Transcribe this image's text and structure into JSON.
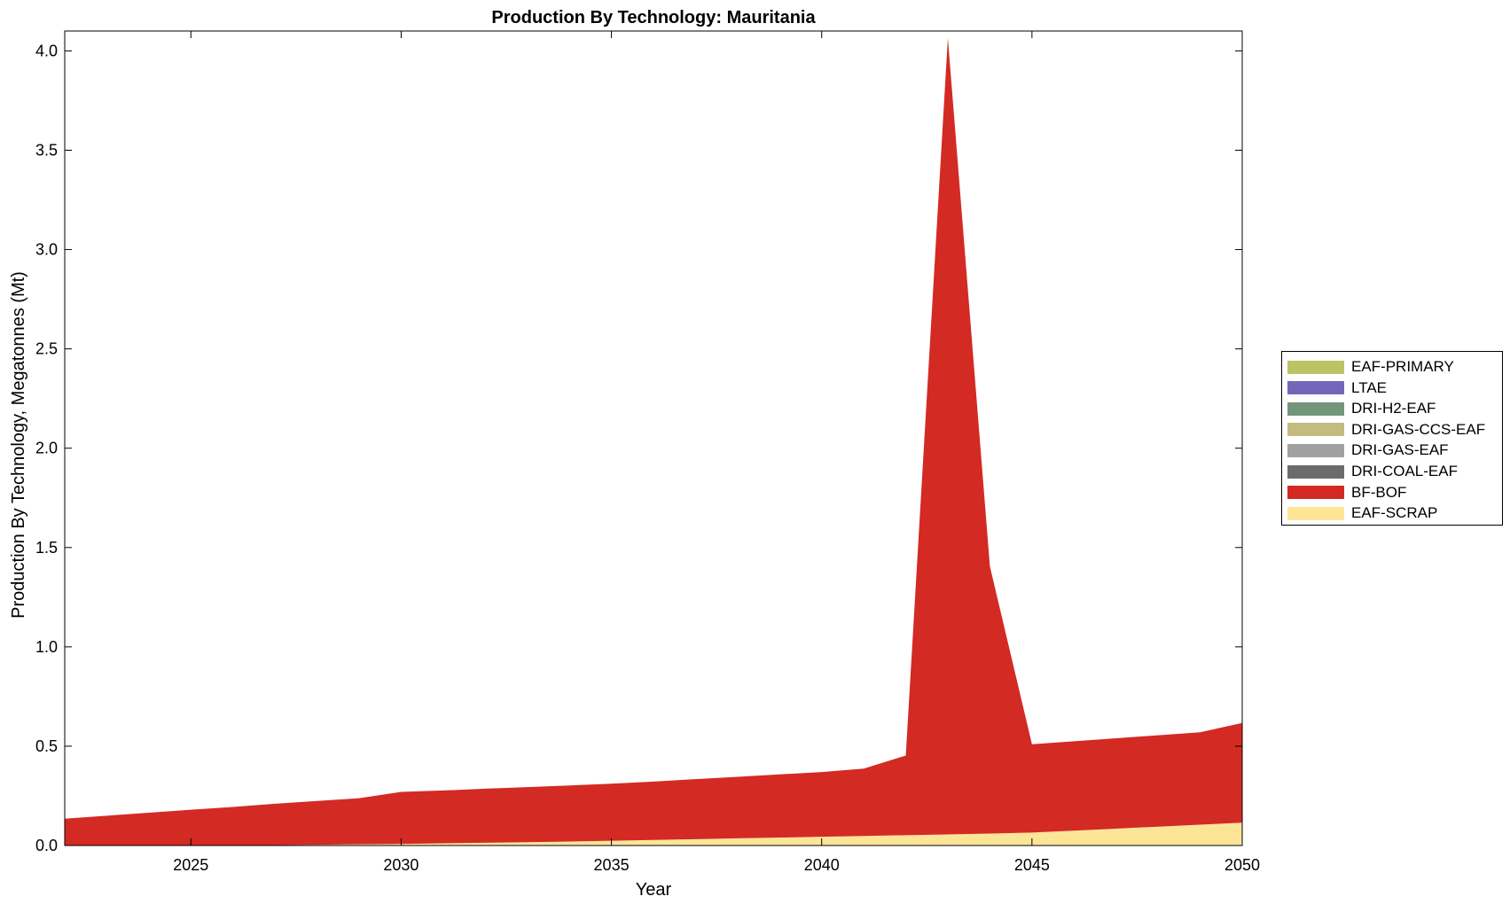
{
  "chart_data": {
    "type": "area",
    "title": "Production By Technology: Mauritania",
    "xlabel": "Year",
    "ylabel": "Production By Technology, Megatonnes (Mt)",
    "xlim": [
      2022,
      2050
    ],
    "ylim": [
      0,
      4.1
    ],
    "xticks": [
      2025,
      2030,
      2035,
      2040,
      2045,
      2050
    ],
    "yticks": [
      "0.0",
      "0.5",
      "1.0",
      "1.5",
      "2.0",
      "2.5",
      "3.0",
      "3.5",
      "4.0"
    ],
    "grid": false,
    "legend_position": "right",
    "stacked": true,
    "x": [
      2022,
      2023,
      2024,
      2025,
      2026,
      2027,
      2028,
      2029,
      2030,
      2031,
      2032,
      2033,
      2034,
      2035,
      2036,
      2037,
      2038,
      2039,
      2040,
      2041,
      2042,
      2043,
      2044,
      2045,
      2046,
      2047,
      2048,
      2049,
      2050
    ],
    "series": [
      {
        "name": "EAF-SCRAP",
        "color": "#fde597",
        "values": [
          0.0,
          0.0,
          0.0,
          0.0,
          0.0,
          0.002,
          0.004,
          0.006,
          0.008,
          0.011,
          0.014,
          0.017,
          0.02,
          0.024,
          0.028,
          0.032,
          0.036,
          0.04,
          0.044,
          0.048,
          0.052,
          0.056,
          0.06,
          0.065,
          0.075,
          0.085,
          0.095,
          0.105,
          0.115
        ]
      },
      {
        "name": "BF-BOF",
        "color": "#d32a24",
        "values": [
          0.135,
          0.15,
          0.165,
          0.18,
          0.194,
          0.208,
          0.22,
          0.232,
          0.262,
          0.266,
          0.272,
          0.277,
          0.282,
          0.287,
          0.294,
          0.302,
          0.31,
          0.318,
          0.326,
          0.339,
          0.401,
          4.009,
          1.345,
          0.445,
          0.45,
          0.455,
          0.46,
          0.465,
          0.502
        ]
      },
      {
        "name": "DRI-COAL-EAF",
        "color": "#6b6b6b",
        "values": [
          0,
          0,
          0,
          0,
          0,
          0,
          0,
          0,
          0,
          0,
          0,
          0,
          0,
          0,
          0,
          0,
          0,
          0,
          0,
          0,
          0,
          0,
          0,
          0,
          0,
          0,
          0,
          0,
          0
        ]
      },
      {
        "name": "DRI-GAS-EAF",
        "color": "#a0a0a0",
        "values": [
          0,
          0,
          0,
          0,
          0,
          0,
          0,
          0,
          0,
          0,
          0,
          0,
          0,
          0,
          0,
          0,
          0,
          0,
          0,
          0,
          0,
          0,
          0,
          0,
          0,
          0,
          0,
          0,
          0
        ]
      },
      {
        "name": "DRI-GAS-CCS-EAF",
        "color": "#c4bb7f",
        "values": [
          0,
          0,
          0,
          0,
          0,
          0,
          0,
          0,
          0,
          0,
          0,
          0,
          0,
          0,
          0,
          0,
          0,
          0,
          0,
          0,
          0,
          0,
          0,
          0,
          0,
          0,
          0,
          0,
          0
        ]
      },
      {
        "name": "DRI-H2-EAF",
        "color": "#71967a",
        "values": [
          0,
          0,
          0,
          0,
          0,
          0,
          0,
          0,
          0,
          0,
          0,
          0,
          0,
          0,
          0,
          0,
          0,
          0,
          0,
          0,
          0,
          0,
          0,
          0,
          0,
          0,
          0,
          0,
          0
        ]
      },
      {
        "name": "LTAE",
        "color": "#7367b9",
        "values": [
          0,
          0,
          0,
          0,
          0,
          0,
          0,
          0,
          0,
          0,
          0,
          0,
          0,
          0,
          0,
          0,
          0,
          0,
          0,
          0,
          0,
          0,
          0,
          0,
          0,
          0,
          0,
          0,
          0
        ]
      },
      {
        "name": "EAF-PRIMARY",
        "color": "#bcc364",
        "values": [
          0,
          0,
          0,
          0,
          0,
          0,
          0,
          0,
          0,
          0,
          0,
          0,
          0,
          0,
          0,
          0,
          0,
          0,
          0,
          0,
          0,
          0,
          0,
          0,
          0,
          0,
          0,
          0,
          0
        ]
      }
    ],
    "legend_order": [
      "EAF-PRIMARY",
      "LTAE",
      "DRI-H2-EAF",
      "DRI-GAS-CCS-EAF",
      "DRI-GAS-EAF",
      "DRI-COAL-EAF",
      "BF-BOF",
      "EAF-SCRAP"
    ]
  }
}
